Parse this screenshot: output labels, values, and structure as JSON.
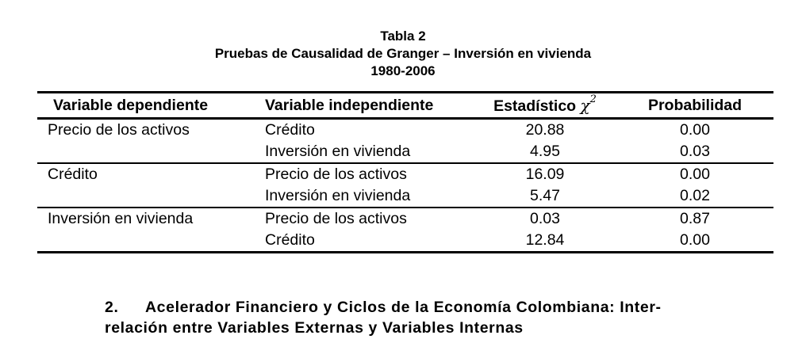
{
  "caption": {
    "line1": "Tabla 2",
    "line2": "Pruebas de Causalidad de Granger – Inversión en vivienda",
    "line3": "1980-2006"
  },
  "table": {
    "headers": {
      "dependent": "Variable dependiente",
      "independent": "Variable independiente",
      "statistic": "Estadístico",
      "statistic_symbol": "χ",
      "statistic_sup": "2",
      "probability": "Probabilidad"
    },
    "groups": [
      {
        "dependent": "Precio de los activos",
        "rows": [
          {
            "independent": "Crédito",
            "statistic": "20.88",
            "probability": "0.00"
          },
          {
            "independent": "Inversión en vivienda",
            "statistic": "4.95",
            "probability": "0.03"
          }
        ]
      },
      {
        "dependent": "Crédito",
        "rows": [
          {
            "independent": "Precio de los activos",
            "statistic": "16.09",
            "probability": "0.00"
          },
          {
            "independent": "Inversión en vivienda",
            "statistic": "5.47",
            "probability": "0.02"
          }
        ]
      },
      {
        "dependent": "Inversión en vivienda",
        "rows": [
          {
            "independent": "Precio de los activos",
            "statistic": "0.03",
            "probability": "0.87"
          },
          {
            "independent": "Crédito",
            "statistic": "12.84",
            "probability": "0.00"
          }
        ]
      }
    ]
  },
  "section": {
    "number": "2.",
    "title_line1": "Acelerador Financiero y Ciclos de la Economía Colombiana: Inter-",
    "title_line2": "relación entre Variables Externas y Variables Internas"
  }
}
